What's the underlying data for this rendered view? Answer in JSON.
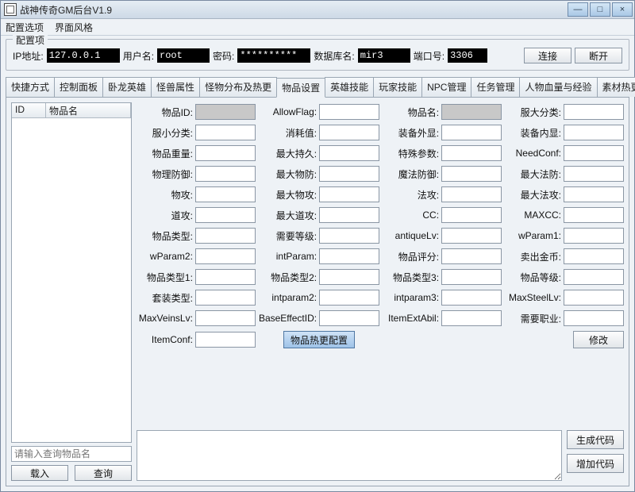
{
  "window": {
    "title": "战神传奇GM后台V1.9",
    "menu": {
      "config": "配置选项",
      "skin": "界面风格"
    },
    "sysbuttons": {
      "min": "—",
      "max": "□",
      "close": "×"
    }
  },
  "config": {
    "legend": "配置项",
    "ip_label": "IP地址:",
    "ip": "127.0.0.1",
    "user_label": "用户名:",
    "user": "root",
    "pwd_label": "密码:",
    "pwd": "**********",
    "db_label": "数据库名:",
    "db": "mir3",
    "port_label": "端口号:",
    "port": "3306",
    "connect": "连接",
    "disconnect": "断开"
  },
  "tabs": [
    "快捷方式",
    "控制面板",
    "卧龙英雄",
    "怪兽属性",
    "怪物分布及热更",
    "物品设置",
    "英雄技能",
    "玩家技能",
    "NPC管理",
    "任务管理",
    "人物血量与经验",
    "素材热更"
  ],
  "active_tab_index": 5,
  "left": {
    "col_id": "ID",
    "col_name": "物品名",
    "search_placeholder": "请输入查询物品名",
    "load": "载入",
    "query": "查询"
  },
  "form_rows": [
    [
      [
        "物品ID:",
        "gray"
      ],
      [
        "AllowFlag:",
        ""
      ],
      [
        "物品名:",
        "gray"
      ],
      [
        "服大分类:",
        ""
      ]
    ],
    [
      [
        "服小分类:",
        ""
      ],
      [
        "消耗值:",
        ""
      ],
      [
        "装备外显:",
        ""
      ],
      [
        "装备内显:",
        ""
      ]
    ],
    [
      [
        "物品重量:",
        ""
      ],
      [
        "最大持久:",
        ""
      ],
      [
        "特殊参数:",
        ""
      ],
      [
        "NeedConf:",
        ""
      ]
    ],
    [
      [
        "物理防御:",
        ""
      ],
      [
        "最大物防:",
        ""
      ],
      [
        "魔法防御:",
        ""
      ],
      [
        "最大法防:",
        ""
      ]
    ],
    [
      [
        "物攻:",
        ""
      ],
      [
        "最大物攻:",
        ""
      ],
      [
        "法攻:",
        ""
      ],
      [
        "最大法攻:",
        ""
      ]
    ],
    [
      [
        "道攻:",
        ""
      ],
      [
        "最大道攻:",
        ""
      ],
      [
        "CC:",
        ""
      ],
      [
        "MAXCC:",
        ""
      ]
    ],
    [
      [
        "物品类型:",
        ""
      ],
      [
        "需要等级:",
        ""
      ],
      [
        "antiqueLv:",
        ""
      ],
      [
        "wParam1:",
        ""
      ]
    ],
    [
      [
        "wParam2:",
        ""
      ],
      [
        "intParam:",
        ""
      ],
      [
        "物品评分:",
        ""
      ],
      [
        "卖出金币:",
        ""
      ]
    ],
    [
      [
        "物品类型1:",
        ""
      ],
      [
        "物品类型2:",
        ""
      ],
      [
        "物品类型3:",
        ""
      ],
      [
        "物品等级:",
        ""
      ]
    ],
    [
      [
        "套装类型:",
        ""
      ],
      [
        "intparam2:",
        ""
      ],
      [
        "intparam3:",
        ""
      ],
      [
        "MaxSteelLv:",
        ""
      ]
    ],
    [
      [
        "MaxVeinsLv:",
        ""
      ],
      [
        "BaseEffectID:",
        ""
      ],
      [
        "ItemExtAbil:",
        ""
      ],
      [
        "需要职业:",
        ""
      ]
    ],
    [
      [
        "ItemConf:",
        ""
      ]
    ]
  ],
  "actions": {
    "hotreload": "物品热更配置",
    "modify": "修改",
    "gen": "生成代码",
    "add": "增加代码"
  },
  "colors": {
    "cfg_input_bg": "#000000",
    "cfg_input_fg": "#ffffff",
    "window_bg": "#eef2f6",
    "border": "#9aa6b3"
  }
}
